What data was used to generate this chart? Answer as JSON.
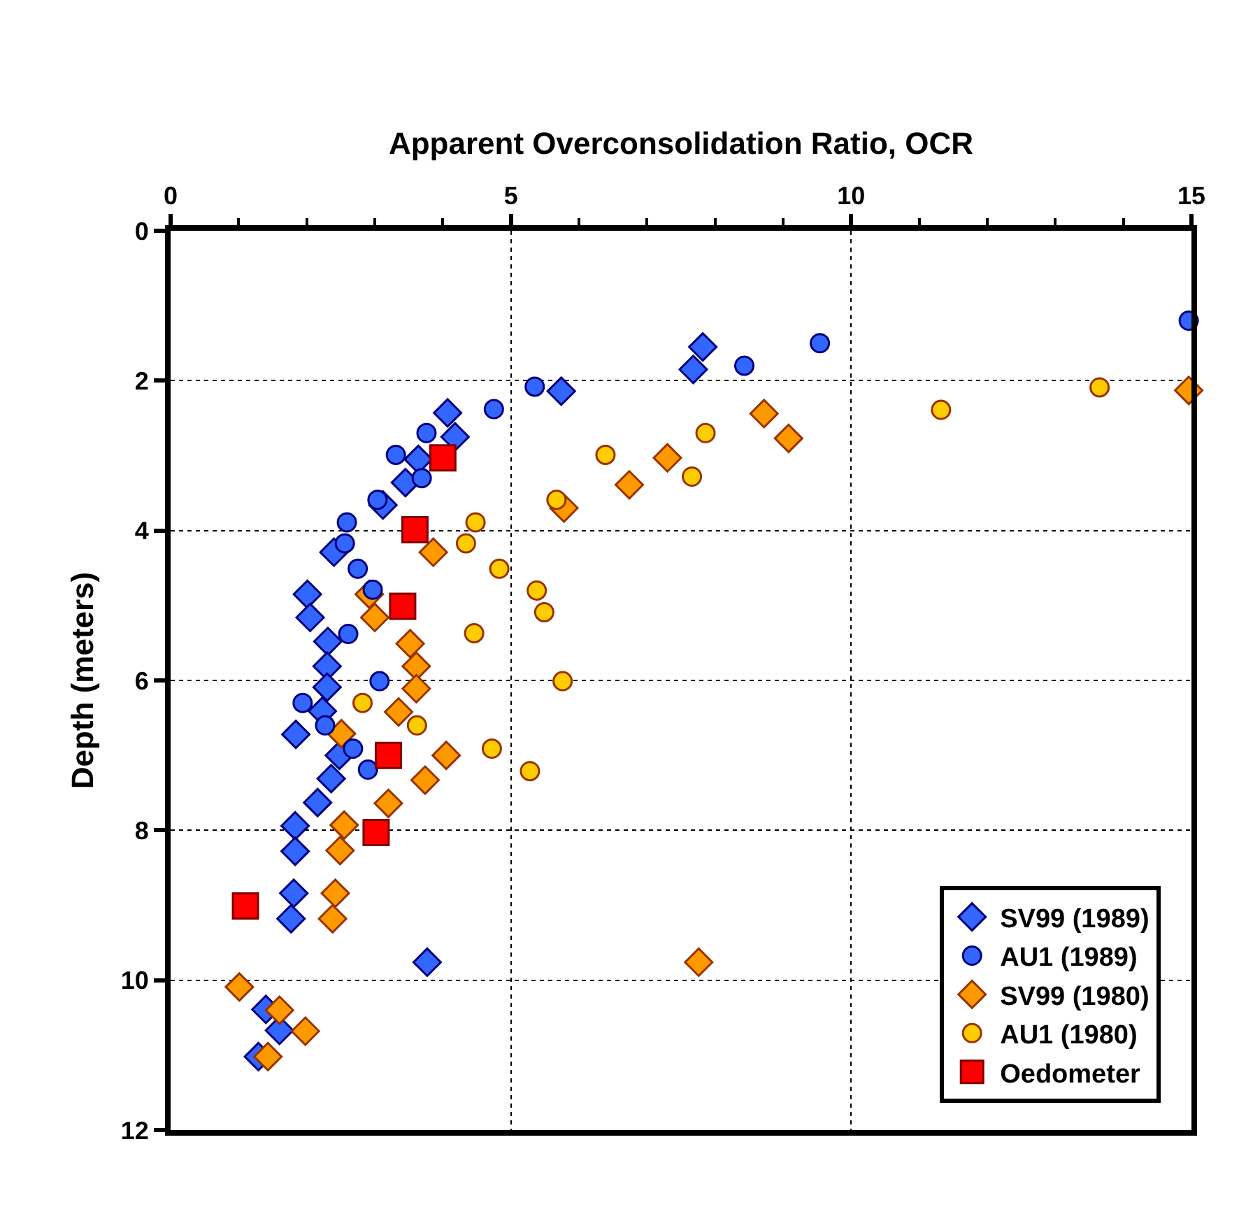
{
  "chart_data": {
    "type": "scatter",
    "xlabel": "Apparent Overconsolidation Ratio, OCR",
    "ylabel": "Depth (meters)",
    "xlim": [
      0,
      15
    ],
    "xticks": [
      0,
      5,
      10,
      15
    ],
    "ylim": [
      12,
      0
    ],
    "yticks": [
      0,
      2,
      4,
      6,
      8,
      10,
      12
    ],
    "grid": true,
    "legend": "bottom right",
    "series": [
      {
        "name": "SV99 (1989)",
        "color": "#3366ff",
        "marker": "diamond",
        "x": [
          7.82,
          7.68,
          5.74,
          4.07,
          4.18,
          3.64,
          3.45,
          3.12,
          2.4,
          2.01,
          2.05,
          2.31,
          2.3,
          2.3,
          2.23,
          1.84,
          2.48,
          2.36,
          2.16,
          1.83,
          1.83,
          1.81,
          1.77,
          3.77,
          1.4,
          1.6,
          1.29
        ],
        "values": [
          1.55,
          1.85,
          2.14,
          2.43,
          2.75,
          3.05,
          3.36,
          3.66,
          4.29,
          4.85,
          5.16,
          5.48,
          5.81,
          6.09,
          6.41,
          6.72,
          7.0,
          7.31,
          7.63,
          7.94,
          8.28,
          8.84,
          9.18,
          9.76,
          10.39,
          10.67,
          11.02
        ]
      },
      {
        "name": "AU1 (1989)",
        "color": "#3366ff",
        "marker": "circle",
        "x": [
          14.96,
          9.54,
          8.43,
          5.35,
          4.75,
          3.76,
          3.31,
          3.69,
          3.04,
          2.59,
          2.56,
          2.75,
          2.97,
          2.61,
          3.07,
          1.94,
          2.27,
          2.68,
          2.9
        ],
        "values": [
          1.2,
          1.5,
          1.8,
          2.08,
          2.38,
          2.7,
          2.99,
          3.3,
          3.59,
          3.89,
          4.17,
          4.51,
          4.79,
          5.38,
          6.01,
          6.3,
          6.6,
          6.91,
          7.19
        ]
      },
      {
        "name": "SV99 (1980)",
        "color": "#ff9900",
        "marker": "diamond",
        "x": [
          14.96,
          8.72,
          9.08,
          7.3,
          6.74,
          5.78,
          3.86,
          2.92,
          3.0,
          3.52,
          3.61,
          3.61,
          3.35,
          2.51,
          4.05,
          3.74,
          3.2,
          2.55,
          2.49,
          2.42,
          2.38,
          7.76,
          1.01,
          1.6,
          1.98,
          1.43
        ],
        "values": [
          2.13,
          2.44,
          2.77,
          3.03,
          3.39,
          3.7,
          4.29,
          4.85,
          5.16,
          5.51,
          5.81,
          6.11,
          6.42,
          6.71,
          7.0,
          7.33,
          7.64,
          7.93,
          8.27,
          8.84,
          9.18,
          9.76,
          10.09,
          10.4,
          10.68,
          11.02
        ]
      },
      {
        "name": "AU1 (1980)",
        "color": "#ffcc00",
        "marker": "circle",
        "x": [
          13.65,
          11.32,
          7.86,
          7.66,
          6.39,
          5.67,
          4.48,
          4.34,
          4.83,
          5.38,
          5.49,
          4.46,
          5.76,
          2.82,
          3.62,
          4.72,
          5.28
        ],
        "values": [
          2.09,
          2.39,
          2.7,
          3.28,
          2.99,
          3.59,
          3.89,
          4.17,
          4.51,
          4.8,
          5.09,
          5.37,
          6.01,
          6.3,
          6.6,
          6.91,
          7.21
        ]
      },
      {
        "name": "Oedometer",
        "color": "#ff0000",
        "marker": "square",
        "x": [
          4.0,
          3.59,
          3.41,
          3.2,
          3.02,
          1.1
        ],
        "values": [
          3.03,
          3.99,
          5.01,
          7.0,
          8.03,
          9.01
        ]
      }
    ]
  }
}
